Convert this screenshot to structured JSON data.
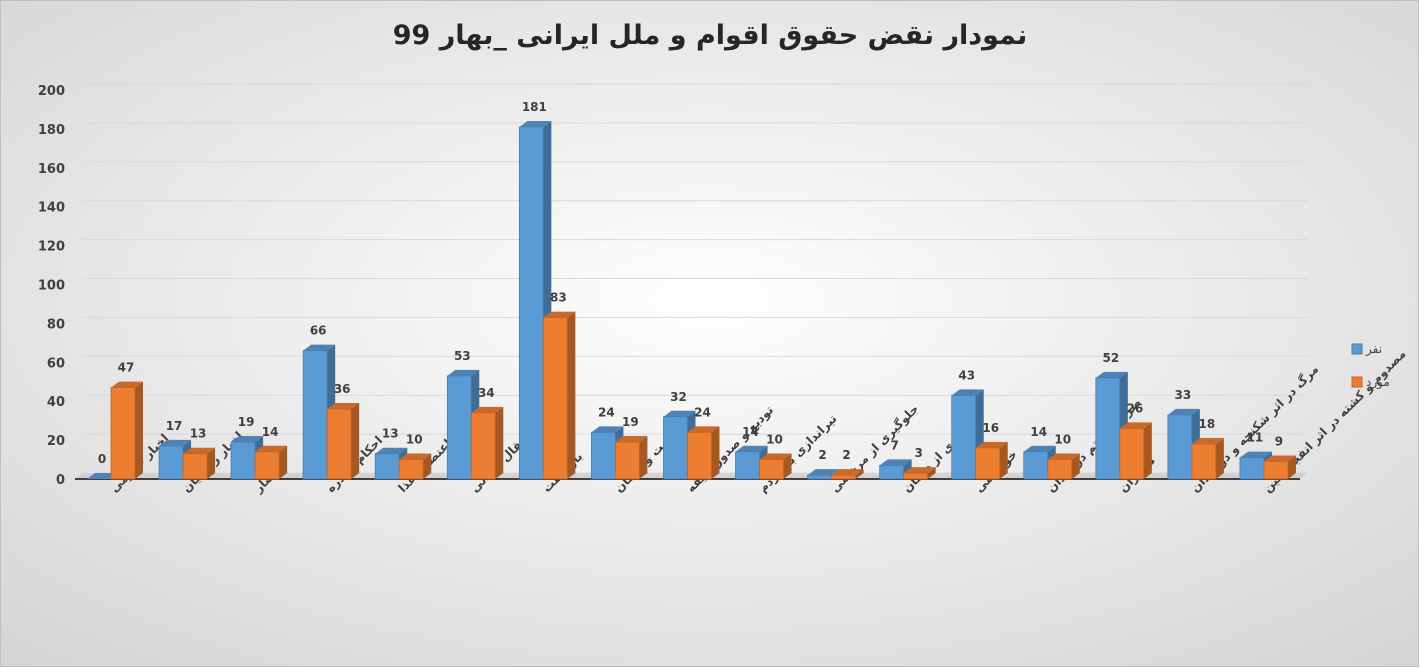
{
  "chart_data": {
    "type": "bar3d",
    "title": "نمودار نقض حقوق اقوام و ملل ایرانی _بهار 99",
    "categories": [
      "اخبار عمومی",
      "اخبار زندانیان",
      "احضار",
      "احکام صادره",
      "اعتصاب غذا",
      "انتقال زندانی",
      "بازداشت",
      "بهداشت و درمان",
      "تودیع و صدور وثیقه",
      "تیراندازی به مردم",
      "جلوگیری از مرخصی",
      "جلوگیری از درمان",
      "خودکشی",
      "ضرب و شتم در زندان",
      "کولبران",
      "مرگ در اثر شکنجه و در زندان",
      "مصدوم و کشته در اثر انفجار مین"
    ],
    "series": [
      {
        "name": "نفر",
        "color": "#5b9bd5",
        "values": [
          0,
          17,
          19,
          66,
          13,
          53,
          181,
          24,
          32,
          14,
          2,
          7,
          43,
          14,
          52,
          33,
          11
        ]
      },
      {
        "name": "مورد",
        "color": "#ed7d31",
        "values": [
          47,
          13,
          14,
          36,
          10,
          34,
          83,
          19,
          24,
          10,
          2,
          3,
          16,
          10,
          26,
          18,
          9
        ]
      }
    ],
    "ylim": [
      0,
      200
    ],
    "yticks": [
      0,
      20,
      40,
      60,
      80,
      100,
      120,
      140,
      160,
      180,
      200
    ],
    "grid": true,
    "legend": "right"
  }
}
